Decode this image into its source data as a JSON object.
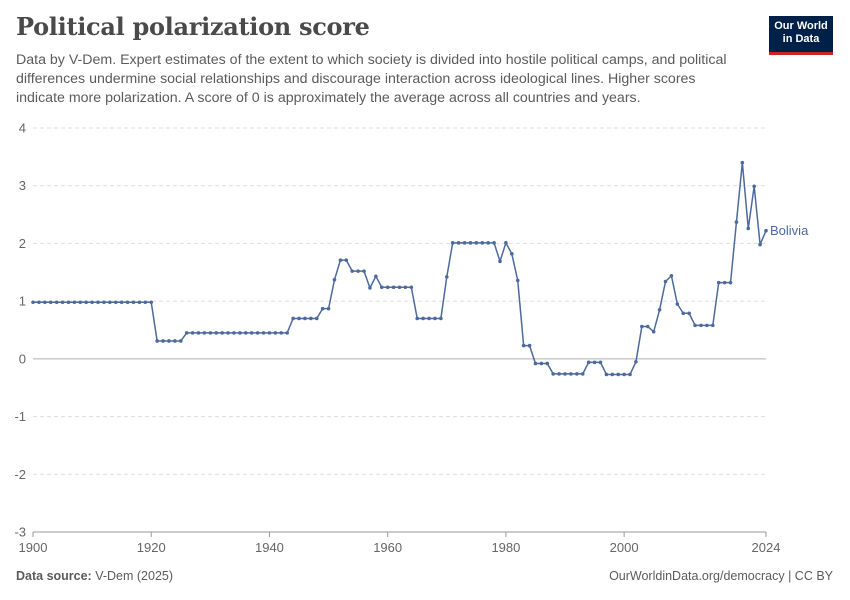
{
  "header": {
    "title": "Political polarization score",
    "subtitle": "Data by V-Dem. Expert estimates of the extent to which society is divided into hostile political camps, and political differences undermine social relationships and discourage interaction across ideological lines. Higher scores indicate more polarization. A score of 0 is approximately the average across all countries and years."
  },
  "logo": {
    "line1": "Our World",
    "line2": "in Data",
    "bg": "#002147",
    "accent": "#ce261e"
  },
  "footer": {
    "source_label": "Data source:",
    "source_value": "V-Dem (2025)",
    "right": "OurWorldinData.org/democracy | CC BY"
  },
  "chart_data": {
    "type": "line",
    "title": "Political polarization score",
    "xlabel": "",
    "ylabel": "",
    "xlim": [
      1900,
      2024
    ],
    "ylim": [
      -3,
      4
    ],
    "yticks": [
      -3,
      -2,
      -1,
      0,
      1,
      2,
      3,
      4
    ],
    "xticks": [
      1900,
      1920,
      1940,
      1960,
      1980,
      2000,
      2024
    ],
    "grid": true,
    "legend": "end-of-line label",
    "series": [
      {
        "name": "Bolivia",
        "color": "#4c6a9c",
        "points": [
          [
            1900,
            0.98
          ],
          [
            1901,
            0.98
          ],
          [
            1902,
            0.98
          ],
          [
            1903,
            0.98
          ],
          [
            1904,
            0.98
          ],
          [
            1905,
            0.98
          ],
          [
            1906,
            0.98
          ],
          [
            1907,
            0.98
          ],
          [
            1908,
            0.98
          ],
          [
            1909,
            0.98
          ],
          [
            1910,
            0.98
          ],
          [
            1911,
            0.98
          ],
          [
            1912,
            0.98
          ],
          [
            1913,
            0.98
          ],
          [
            1914,
            0.98
          ],
          [
            1915,
            0.98
          ],
          [
            1916,
            0.98
          ],
          [
            1917,
            0.98
          ],
          [
            1918,
            0.98
          ],
          [
            1919,
            0.98
          ],
          [
            1920,
            0.98
          ],
          [
            1921,
            0.31
          ],
          [
            1922,
            0.31
          ],
          [
            1923,
            0.31
          ],
          [
            1924,
            0.31
          ],
          [
            1925,
            0.31
          ],
          [
            1926,
            0.45
          ],
          [
            1927,
            0.45
          ],
          [
            1928,
            0.45
          ],
          [
            1929,
            0.45
          ],
          [
            1930,
            0.45
          ],
          [
            1931,
            0.45
          ],
          [
            1932,
            0.45
          ],
          [
            1933,
            0.45
          ],
          [
            1934,
            0.45
          ],
          [
            1935,
            0.45
          ],
          [
            1936,
            0.45
          ],
          [
            1937,
            0.45
          ],
          [
            1938,
            0.45
          ],
          [
            1939,
            0.45
          ],
          [
            1940,
            0.45
          ],
          [
            1941,
            0.45
          ],
          [
            1942,
            0.45
          ],
          [
            1943,
            0.45
          ],
          [
            1944,
            0.7
          ],
          [
            1945,
            0.7
          ],
          [
            1946,
            0.7
          ],
          [
            1947,
            0.7
          ],
          [
            1948,
            0.7
          ],
          [
            1949,
            0.87
          ],
          [
            1950,
            0.87
          ],
          [
            1951,
            1.37
          ],
          [
            1952,
            1.71
          ],
          [
            1953,
            1.71
          ],
          [
            1954,
            1.52
          ],
          [
            1955,
            1.52
          ],
          [
            1956,
            1.52
          ],
          [
            1957,
            1.23
          ],
          [
            1958,
            1.43
          ],
          [
            1959,
            1.24
          ],
          [
            1960,
            1.24
          ],
          [
            1961,
            1.24
          ],
          [
            1962,
            1.24
          ],
          [
            1963,
            1.24
          ],
          [
            1964,
            1.24
          ],
          [
            1965,
            0.7
          ],
          [
            1966,
            0.7
          ],
          [
            1967,
            0.7
          ],
          [
            1968,
            0.7
          ],
          [
            1969,
            0.7
          ],
          [
            1970,
            1.42
          ],
          [
            1971,
            2.01
          ],
          [
            1972,
            2.01
          ],
          [
            1973,
            2.01
          ],
          [
            1974,
            2.01
          ],
          [
            1975,
            2.01
          ],
          [
            1976,
            2.01
          ],
          [
            1977,
            2.01
          ],
          [
            1978,
            2.01
          ],
          [
            1979,
            1.69
          ],
          [
            1980,
            2.01
          ],
          [
            1981,
            1.82
          ],
          [
            1982,
            1.36
          ],
          [
            1983,
            0.23
          ],
          [
            1984,
            0.23
          ],
          [
            1985,
            -0.08
          ],
          [
            1986,
            -0.08
          ],
          [
            1987,
            -0.08
          ],
          [
            1988,
            -0.26
          ],
          [
            1989,
            -0.26
          ],
          [
            1990,
            -0.26
          ],
          [
            1991,
            -0.26
          ],
          [
            1992,
            -0.26
          ],
          [
            1993,
            -0.26
          ],
          [
            1994,
            -0.06
          ],
          [
            1995,
            -0.06
          ],
          [
            1996,
            -0.06
          ],
          [
            1997,
            -0.27
          ],
          [
            1998,
            -0.27
          ],
          [
            1999,
            -0.27
          ],
          [
            2000,
            -0.27
          ],
          [
            2001,
            -0.27
          ],
          [
            2002,
            -0.05
          ],
          [
            2003,
            0.56
          ],
          [
            2004,
            0.56
          ],
          [
            2005,
            0.47
          ],
          [
            2006,
            0.85
          ],
          [
            2007,
            1.34
          ],
          [
            2008,
            1.44
          ],
          [
            2009,
            0.95
          ],
          [
            2010,
            0.79
          ],
          [
            2011,
            0.79
          ],
          [
            2012,
            0.58
          ],
          [
            2013,
            0.58
          ],
          [
            2014,
            0.58
          ],
          [
            2015,
            0.58
          ],
          [
            2016,
            1.32
          ],
          [
            2017,
            1.32
          ],
          [
            2018,
            1.32
          ],
          [
            2019,
            2.37
          ],
          [
            2020,
            3.4
          ],
          [
            2021,
            2.26
          ],
          [
            2022,
            2.99
          ],
          [
            2023,
            1.98
          ],
          [
            2024,
            2.22
          ]
        ]
      }
    ]
  }
}
